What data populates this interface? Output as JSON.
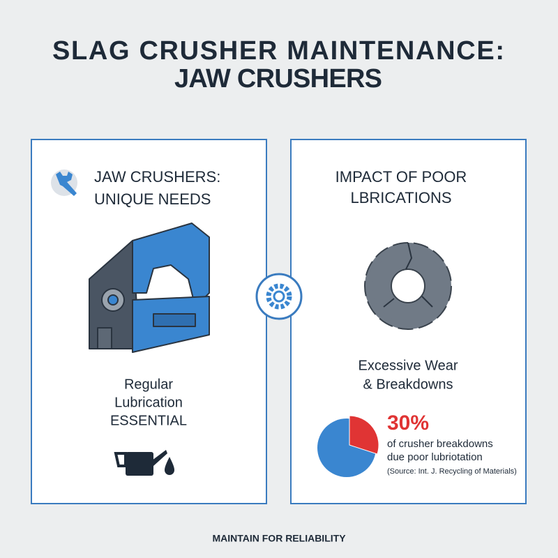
{
  "title": [
    "SLAG CRUSHER MAINTENANCE:",
    "JAW CRUSHERS"
  ],
  "left_panel": {
    "heading": [
      "JAW CRUSHERS:",
      "UNIQUE NEEDS"
    ],
    "caption": [
      "Regular",
      "Lubrication",
      "ESSENTIAL"
    ]
  },
  "right_panel": {
    "heading": [
      "IMPACT OF POOR",
      "LBRICATIONS"
    ],
    "caption": [
      "Excessive Wear",
      "& Breakdowns"
    ],
    "stat": {
      "value": 30,
      "label": "30%",
      "text": [
        "of crusher breakdowns",
        "due poor lubriotation"
      ],
      "source": "(Source: Int. J. Recycling of Materials)"
    }
  },
  "footer": "MAINTAIN FOR RELIABILITY"
}
